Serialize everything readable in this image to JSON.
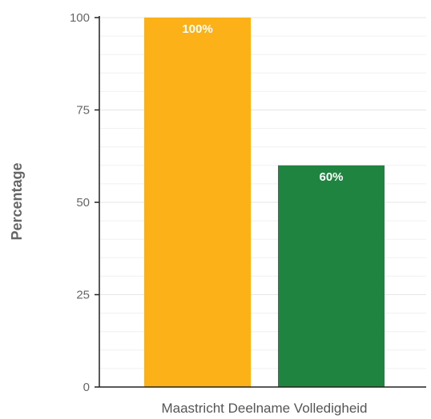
{
  "chart_data": {
    "type": "bar",
    "categories": [
      "Maastricht Deelname Volledigheid"
    ],
    "series": [
      {
        "values": [
          100
        ],
        "color": "#fbb117",
        "data_label": "100%"
      },
      {
        "values": [
          60
        ],
        "color": "#1e843f",
        "data_label": "60%"
      }
    ],
    "ylabel": "Percentage",
    "ylim": [
      0,
      100
    ],
    "yticks": [
      0,
      25,
      50,
      75,
      100
    ],
    "grid": true,
    "grid_color": "#e6e6e6",
    "axis_color": "#222222",
    "legend": "none"
  }
}
